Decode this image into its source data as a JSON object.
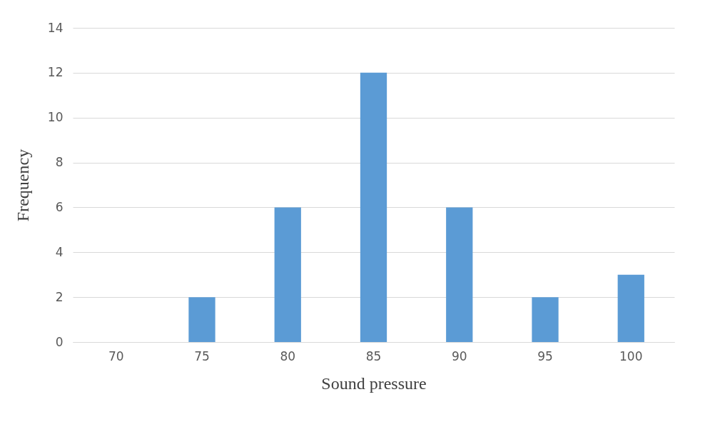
{
  "chart_data": {
    "type": "bar",
    "xlabel": "Sound pressure",
    "ylabel": "Frequency",
    "categories": [
      "70",
      "75",
      "80",
      "85",
      "90",
      "95",
      "100"
    ],
    "values": [
      0,
      2,
      6,
      12,
      6,
      2,
      3
    ],
    "color": "#5b9bd5",
    "ylim": [
      0,
      14
    ],
    "yticks": [
      0,
      2,
      4,
      6,
      8,
      10,
      12,
      14
    ],
    "grid": "y"
  }
}
